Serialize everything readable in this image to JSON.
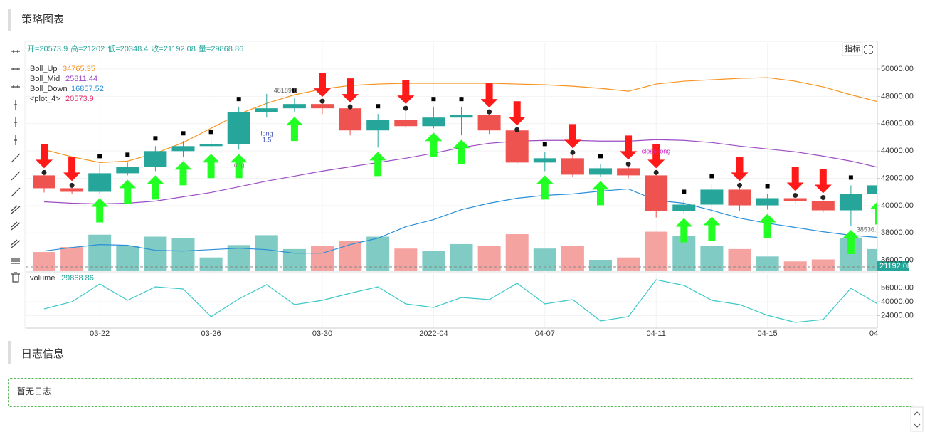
{
  "header": {
    "title": "策略图表"
  },
  "toolbar": {
    "button": "指标"
  },
  "ohlc_legend": [
    "开=20573.9",
    "高=21202",
    "低=20348.4",
    "收=21192.08",
    "量=29868.86"
  ],
  "indicators": [
    {
      "name": "Boll_Up",
      "value": 34765.35,
      "color": "#f7931e"
    },
    {
      "name": "Boll_Mid",
      "value": 25811.44,
      "color": "#9c4dc4"
    },
    {
      "name": "Boll_Down",
      "value": 16857.52,
      "color": "#2a8fd8"
    },
    {
      "name": "<plot_4>",
      "value": 20573.9,
      "color": "#e0306a"
    }
  ],
  "volume_legend": {
    "name": "volume",
    "value": 29868.86
  },
  "price_tag": "21192.08",
  "chart_data": {
    "type": "candlestick",
    "categories": [
      null,
      null,
      "03-22",
      null,
      null,
      null,
      "03-26",
      null,
      null,
      null,
      "03-30",
      null,
      null,
      null,
      "2022-04",
      null,
      null,
      null,
      "04-07",
      null,
      null,
      null,
      "04-11",
      null,
      null,
      null,
      "04-15",
      null,
      null,
      null,
      "04"
    ],
    "open": [
      42215,
      41275,
      41013,
      42372,
      42842,
      43991,
      44357,
      44514,
      46865,
      47126,
      47440,
      47126,
      45507,
      46290,
      45820,
      46447,
      46656,
      45507,
      43155,
      43469,
      42267,
      42737,
      42215,
      39602,
      40073,
      41170,
      40021,
      40543,
      40334,
      39655,
      40856
    ],
    "high": [
      42528,
      41588,
      43051,
      43155,
      44357,
      44723,
      44827,
      47231,
      48189.8,
      47858,
      47753,
      47335,
      46708,
      47231,
      47231,
      47231,
      46970,
      45663,
      43939,
      43991,
      43051,
      43155,
      42528,
      40439,
      41588,
      41588,
      40856,
      40856,
      40700,
      41484,
      41745
    ],
    "low": [
      40961,
      40856,
      40856,
      42215,
      42528,
      43573,
      44096,
      44096,
      46447,
      46813,
      46708,
      45141,
      44252,
      45663,
      45663,
      45141,
      45245,
      43051,
      42528,
      42110,
      42110,
      42006,
      39132,
      39393,
      39498,
      39602,
      39707,
      40125,
      39498,
      38536.5,
      40700
    ],
    "close": [
      41275,
      41013,
      42372,
      42842,
      43991,
      44357,
      44514,
      46865,
      47126,
      47440,
      47126,
      45507,
      46290,
      45820,
      46447,
      46656,
      45507,
      43155,
      43469,
      42267,
      42737,
      42215,
      39602,
      40073,
      41170,
      40021,
      40543,
      40334,
      39655,
      40856,
      41484
    ],
    "up_color": "#26a69a",
    "down_color": "#ef5350",
    "series": [
      {
        "name": "Boll_Up",
        "color": "#f7931e",
        "values": [
          44096,
          43573,
          43155,
          43260,
          43834,
          44618,
          45663,
          46708,
          47492,
          48119,
          48537,
          48798,
          48903,
          48955,
          48955,
          48955,
          48955,
          48903,
          48850,
          48746,
          48589,
          48380,
          48903,
          49112,
          49216,
          49321,
          49373,
          49112,
          48694,
          48119,
          47596
        ]
      },
      {
        "name": "Boll_Mid",
        "color": "#9c4dc4",
        "values": [
          40281,
          40177,
          40125,
          40177,
          40334,
          40647,
          40961,
          41379,
          41797,
          42162,
          42528,
          42842,
          43155,
          43469,
          43834,
          44252,
          44566,
          44723,
          44775,
          44775,
          44723,
          44723,
          44827,
          44775,
          44618,
          44357,
          44148,
          43939,
          43625,
          43260,
          42789
        ]
      },
      {
        "name": "Boll_Down",
        "color": "#2a8fd8",
        "values": [
          36676,
          36937,
          37146,
          37094,
          36728,
          36676,
          36781,
          36885,
          36781,
          36519,
          36519,
          37146,
          37617,
          38453,
          38975,
          39707,
          40177,
          40543,
          40752,
          40856,
          41065,
          41222,
          40386,
          40177,
          39654,
          39080,
          38714,
          38400,
          38087,
          37826,
          37669
        ]
      }
    ],
    "ref_line": {
      "value": 40856,
      "color": "#e0306a"
    },
    "ylim": [
      35200,
      51930
    ],
    "yticks": [
      {
        "value": 36000,
        "label": "36000.00"
      },
      {
        "value": 38000,
        "label": "38000.00"
      },
      {
        "value": 40000,
        "label": "40000.00"
      },
      {
        "value": 42000,
        "label": "42000.00"
      },
      {
        "value": 44000,
        "label": "44000.00"
      },
      {
        "value": 46000,
        "label": "46000.00"
      },
      {
        "value": 48000,
        "label": "48000.00"
      },
      {
        "value": 50000,
        "label": "50000.00"
      }
    ],
    "grid": true,
    "buy_signals": [
      2,
      3,
      4,
      5,
      6,
      7,
      9,
      12,
      14,
      15,
      18,
      20,
      23,
      24,
      26,
      29,
      30
    ],
    "sell_signals": [
      0,
      1,
      10,
      11,
      13,
      16,
      17,
      19,
      21,
      22,
      25,
      27,
      28
    ],
    "annotations": [
      "long",
      "1.5",
      "long",
      "close long"
    ],
    "volume": {
      "name": "volume",
      "color": "#3cc8c8",
      "values": [
        31795,
        40000,
        60513,
        41641,
        57231,
        54769,
        22770,
        43282,
        59692,
        36718,
        41641,
        49846,
        57231,
        37538,
        33436,
        44923,
        42462,
        61333,
        37538,
        42462,
        17846,
        22770,
        65436,
        58872,
        41641,
        36718,
        24410,
        16205,
        19487,
        55590,
        36718
      ]
    },
    "volume_overlay_ylim": [
      0,
      378800
    ],
    "volume_ylim": [
      10460,
      73640
    ],
    "volume_yticks": [
      {
        "value": 24000,
        "label": "24000.00"
      },
      {
        "value": 40000,
        "label": "40000.00"
      },
      {
        "value": 56000,
        "label": "56000.00"
      }
    ]
  },
  "log": {
    "title": "日志信息",
    "empty": "暂无日志"
  }
}
